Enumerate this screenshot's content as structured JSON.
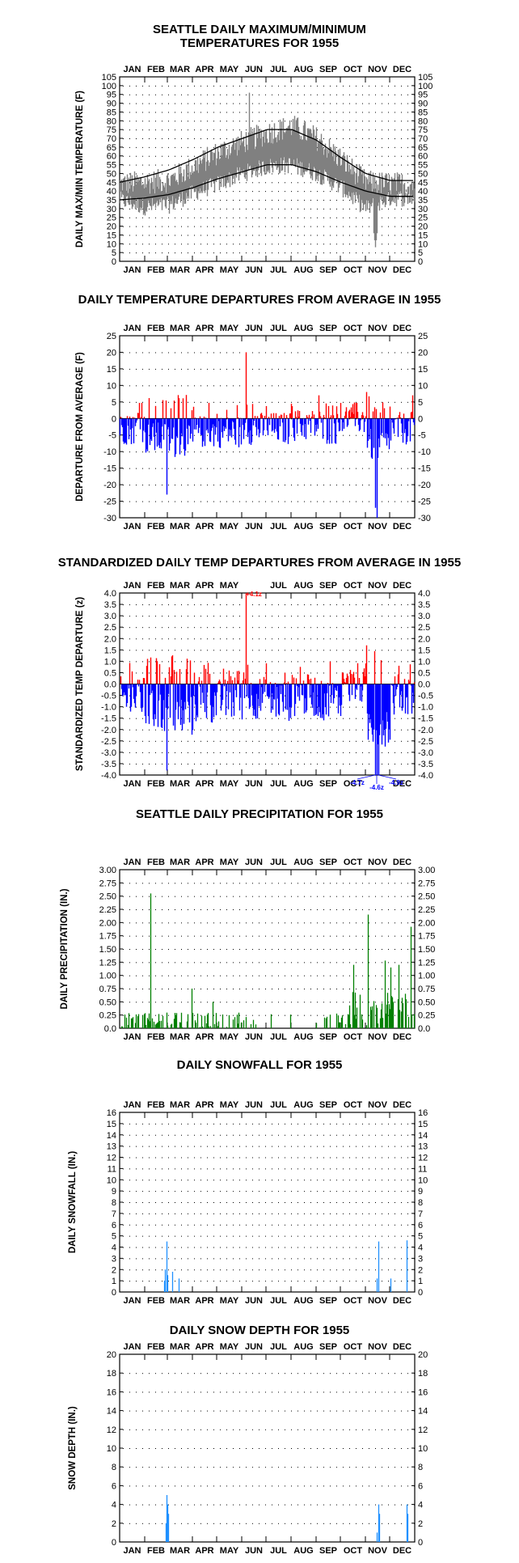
{
  "chart_data": [
    {
      "type": "line",
      "title_lines": [
        "SEATTLE DAILY MAXIMUM/MINIMUM",
        "TEMPERATURES FOR 1955"
      ],
      "ylabel": "DAILY MAX/MIN TEMPERATURE (F)",
      "months": [
        "JAN",
        "FEB",
        "MAR",
        "APR",
        "MAY",
        "JUN",
        "JUL",
        "AUG",
        "SEP",
        "OCT",
        "NOV",
        "DEC"
      ],
      "ylim": [
        0,
        105
      ],
      "yticks": [
        "0",
        "5",
        "10",
        "15",
        "20",
        "25",
        "30",
        "35",
        "40",
        "45",
        "50",
        "55",
        "60",
        "65",
        "70",
        "75",
        "80",
        "85",
        "90",
        "95",
        "100",
        "105"
      ],
      "grid": true,
      "series": [
        {
          "series_key": "observed",
          "color": "#808080",
          "kind": "daily-range",
          "monthly_high": [
            44,
            45,
            46,
            54,
            62,
            68,
            73,
            77,
            70,
            58,
            45,
            44
          ],
          "monthly_low": [
            35,
            31,
            32,
            39,
            44,
            50,
            54,
            55,
            50,
            42,
            30,
            36
          ],
          "max_value": 96,
          "max_day": 160,
          "min_value": 8,
          "min_day": 316
        },
        {
          "series_key": "normal_high",
          "color": "#000000",
          "kind": "normal",
          "monthly": [
            45,
            48,
            52,
            58,
            65,
            70,
            75,
            75,
            69,
            59,
            50,
            46
          ]
        },
        {
          "series_key": "normal_low",
          "color": "#000000",
          "kind": "normal",
          "monthly": [
            35,
            36,
            38,
            42,
            47,
            51,
            55,
            55,
            51,
            45,
            40,
            37
          ]
        }
      ]
    },
    {
      "type": "bar",
      "title_lines": [
        "DAILY TEMPERATURE DEPARTURES FROM AVERAGE IN 1955"
      ],
      "ylabel": "DEPARTURE FROM AVERAGE (F)",
      "months": [
        "JAN",
        "FEB",
        "MAR",
        "APR",
        "MAY",
        "JUN",
        "JUL",
        "AUG",
        "SEP",
        "OCT",
        "NOV",
        "DEC"
      ],
      "ylim": [
        -30,
        25
      ],
      "yticks": [
        "-30",
        "-25",
        "-20",
        "-15",
        "-10",
        "-5",
        "0",
        "5",
        "10",
        "15",
        "20",
        "25"
      ],
      "positive_color": "#ff0000",
      "negative_color": "#0000ff",
      "grid": true,
      "monthly_mean": [
        -3,
        -6,
        -7,
        -4,
        -4,
        -3,
        -3,
        -2,
        -3,
        0,
        -8,
        -3
      ],
      "extremes": [
        {
          "day": 58,
          "value": -23
        },
        {
          "day": 156,
          "value": 20
        },
        {
          "day": 318,
          "value": -30
        },
        {
          "day": 316,
          "value": -27
        },
        {
          "day": 305,
          "value": 8
        },
        {
          "day": 246,
          "value": 7
        },
        {
          "day": 362,
          "value": 7
        }
      ]
    },
    {
      "type": "bar",
      "title_lines": [
        "STANDARDIZED DAILY TEMP DEPARTURES FROM AVERAGE IN 1955"
      ],
      "ylabel": "STANDARDIZED TEMP DEPARTURE (z)",
      "months": [
        "JAN",
        "FEB",
        "MAR",
        "APR",
        "MAY",
        "JUN",
        "JUL",
        "AUG",
        "SEP",
        "OCT",
        "NOV",
        "DEC"
      ],
      "bottom_months": [
        "JAN",
        "FEB",
        "MAR",
        "APR",
        "MAY",
        "JUN",
        "JUL",
        "AUG",
        "SEP",
        "OCT",
        "",
        "DEC"
      ],
      "top_months": [
        "JAN",
        "FEB",
        "MAR",
        "APR",
        "MAY",
        "",
        "JUL",
        "AUG",
        "SEP",
        "OCT",
        "NOV",
        "DEC"
      ],
      "ylim": [
        -4,
        4
      ],
      "yticks": [
        "-4.0",
        "-3.5",
        "-3.0",
        "-2.5",
        "-2.0",
        "-1.5",
        "-1.0",
        "-0.5",
        "0.0",
        "0.5",
        "1.0",
        "1.5",
        "2.0",
        "2.5",
        "3.0",
        "3.5",
        "4.0"
      ],
      "positive_color": "#ff0000",
      "negative_color": "#0000ff",
      "grid": true,
      "monthly_mean": [
        -0.6,
        -1.2,
        -1.4,
        -0.8,
        -0.7,
        -0.6,
        -0.7,
        -0.5,
        -0.7,
        0.0,
        -1.8,
        -0.5
      ],
      "extremes": [
        {
          "day": 58,
          "value": -3.8
        },
        {
          "day": 156,
          "value": 4.1
        },
        {
          "day": 316,
          "value": -4.7
        },
        {
          "day": 318,
          "value": -4.6
        },
        {
          "day": 320,
          "value": -4.9
        },
        {
          "day": 305,
          "value": 1.7
        }
      ],
      "annotations": [
        {
          "label": "+4.1z",
          "day": 156,
          "value": 4.1,
          "color": "#ff0000"
        },
        {
          "label": "-4.7z",
          "day": 316,
          "value": -4.7,
          "color": "#0000ff"
        },
        {
          "label": "-4.6z",
          "day": 318,
          "value": -4.6,
          "color": "#0000ff"
        },
        {
          "label": "-4.9z",
          "day": 320,
          "value": -4.9,
          "color": "#0000ff"
        }
      ]
    },
    {
      "type": "bar",
      "title_lines": [
        "SEATTLE DAILY PRECIPITATION FOR 1955"
      ],
      "ylabel": "DAILY PRECIPITATION (IN.)",
      "months": [
        "JAN",
        "FEB",
        "MAR",
        "APR",
        "MAY",
        "JUN",
        "JUL",
        "AUG",
        "SEP",
        "OCT",
        "NOV",
        "DEC"
      ],
      "ylim": [
        0,
        3.0
      ],
      "yticks": [
        "0.0",
        "0.25",
        "0.50",
        "0.75",
        "1.00",
        "1.25",
        "1.50",
        "1.75",
        "2.00",
        "2.25",
        "2.50",
        "2.75",
        "3.00"
      ],
      "bar_color": "#008000",
      "grid": true,
      "extremes": [
        {
          "day": 38,
          "value": 2.55
        },
        {
          "day": 307,
          "value": 2.15
        },
        {
          "day": 360,
          "value": 1.92
        },
        {
          "day": 289,
          "value": 1.2
        },
        {
          "day": 328,
          "value": 1.28
        },
        {
          "day": 335,
          "value": 1.15
        },
        {
          "day": 345,
          "value": 1.2
        },
        {
          "day": 89,
          "value": 0.75
        },
        {
          "day": 115,
          "value": 0.5
        }
      ]
    },
    {
      "type": "bar",
      "title_lines": [
        "DAILY SNOWFALL FOR 1955"
      ],
      "ylabel": "DAILY SNOWFALL (IN.)",
      "months": [
        "JAN",
        "FEB",
        "MAR",
        "APR",
        "MAY",
        "JUN",
        "JUL",
        "AUG",
        "SEP",
        "OCT",
        "NOV",
        "DEC"
      ],
      "ylim": [
        0,
        16
      ],
      "yticks": [
        "0",
        "1",
        "2",
        "3",
        "4",
        "5",
        "6",
        "7",
        "8",
        "9",
        "10",
        "11",
        "12",
        "13",
        "14",
        "15",
        "16"
      ],
      "bar_color": "#1e90ff",
      "grid": true,
      "points": [
        {
          "day": 55,
          "value": 1
        },
        {
          "day": 56,
          "value": 2
        },
        {
          "day": 58,
          "value": 4.5
        },
        {
          "day": 59,
          "value": 1.5
        },
        {
          "day": 65,
          "value": 1.8
        },
        {
          "day": 73,
          "value": 1.2
        },
        {
          "day": 318,
          "value": 1.2
        },
        {
          "day": 320,
          "value": 4.5
        },
        {
          "day": 335,
          "value": 1.2
        },
        {
          "day": 355,
          "value": 4.6
        }
      ]
    },
    {
      "type": "bar",
      "title_lines": [
        "DAILY SNOW DEPTH FOR 1955"
      ],
      "ylabel": "SNOW DEPTH (IN.)",
      "months": [
        "JAN",
        "FEB",
        "MAR",
        "APR",
        "MAY",
        "JUN",
        "JUL",
        "AUG",
        "SEP",
        "OCT",
        "NOV",
        "DEC"
      ],
      "ylim": [
        0,
        20
      ],
      "yticks": [
        "0",
        "2",
        "4",
        "6",
        "8",
        "10",
        "12",
        "14",
        "16",
        "18",
        "20"
      ],
      "bar_color": "#1e90ff",
      "grid": true,
      "points": [
        {
          "day": 57,
          "value": 2
        },
        {
          "day": 58,
          "value": 5
        },
        {
          "day": 59,
          "value": 4
        },
        {
          "day": 60,
          "value": 3
        },
        {
          "day": 318,
          "value": 1
        },
        {
          "day": 320,
          "value": 4
        },
        {
          "day": 321,
          "value": 3
        },
        {
          "day": 355,
          "value": 4
        },
        {
          "day": 356,
          "value": 3
        }
      ]
    }
  ]
}
